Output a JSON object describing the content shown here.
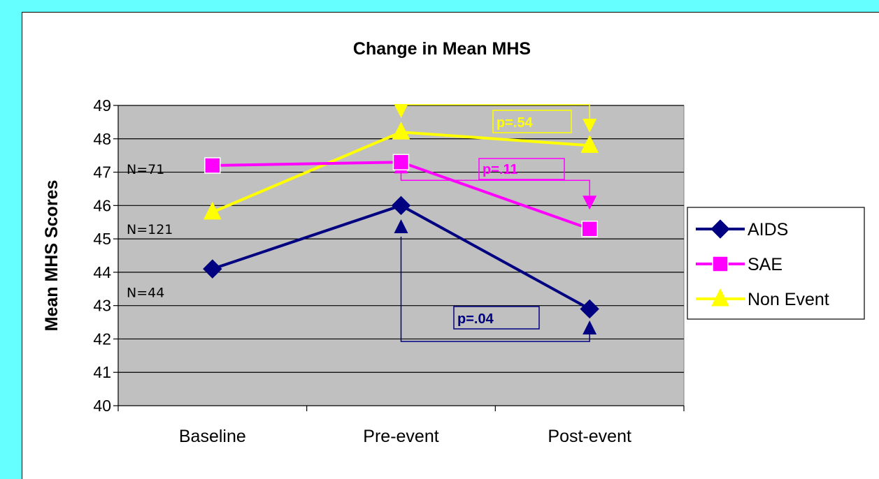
{
  "chart_data": {
    "type": "line",
    "title": "Change in Mean MHS",
    "ylabel": "Mean MHS Scores",
    "xlabel": "",
    "ylim": [
      40,
      49
    ],
    "yticks": [
      40,
      41,
      42,
      43,
      44,
      45,
      46,
      47,
      48,
      49
    ],
    "categories": [
      "Baseline",
      "Pre-event",
      "Post-event"
    ],
    "grid": "horizontal",
    "legend": "right",
    "series": [
      {
        "name": "AIDS",
        "values": [
          44.1,
          46.0,
          42.9
        ],
        "color": "#000080",
        "marker": "diamond"
      },
      {
        "name": "SAE",
        "values": [
          47.2,
          47.3,
          45.3
        ],
        "color": "#ff00ff",
        "marker": "square"
      },
      {
        "name": "Non Event",
        "values": [
          45.8,
          48.2,
          47.8
        ],
        "color": "#ffff00",
        "marker": "triangle"
      }
    ],
    "annotations": [
      {
        "text": "N=71",
        "y": 47.1
      },
      {
        "text": "N=121",
        "y": 45.3
      },
      {
        "text": "N=44",
        "y": 43.4
      },
      {
        "text": "p=.54",
        "series": "Non Event",
        "color": "#ffff00"
      },
      {
        "text": "p=.11",
        "series": "SAE",
        "color": "#ff00ff"
      },
      {
        "text": "p=.04",
        "series": "AIDS",
        "color": "#000080"
      }
    ]
  }
}
